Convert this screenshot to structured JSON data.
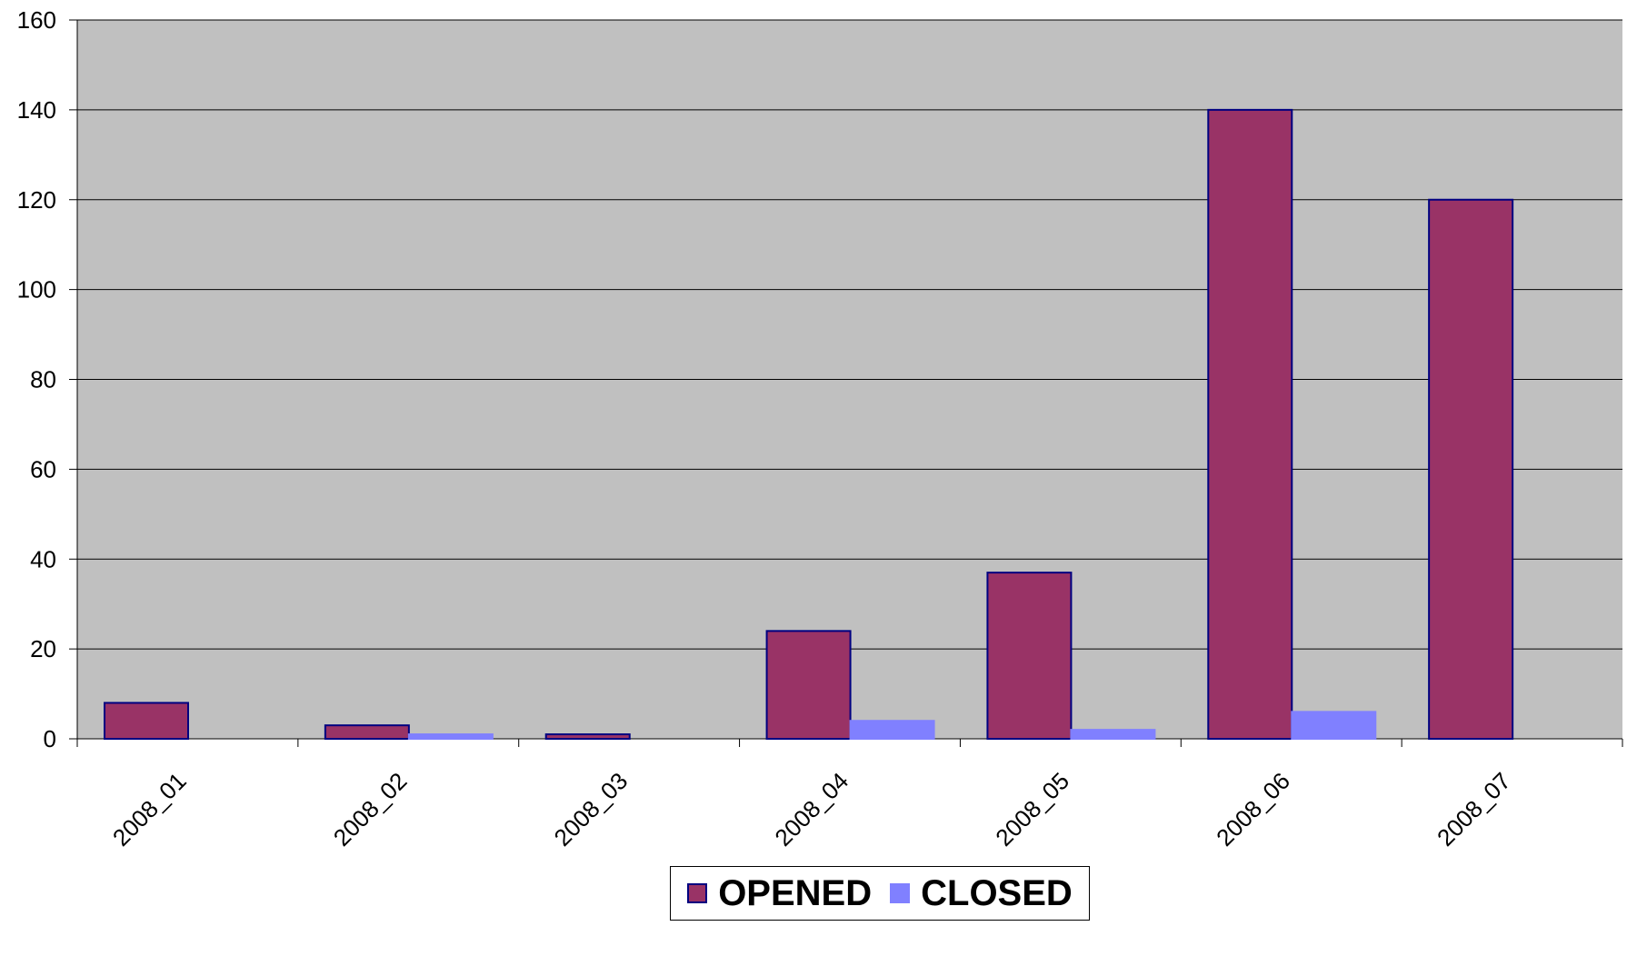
{
  "chart_data": {
    "type": "bar",
    "categories": [
      "2008_01",
      "2008_02",
      "2008_03",
      "2008_04",
      "2008_05",
      "2008_06",
      "2008_07"
    ],
    "series": [
      {
        "name": "OPENED",
        "values": [
          8,
          3,
          1,
          24,
          37,
          140,
          120
        ],
        "color": "#993366",
        "border": "#000080"
      },
      {
        "name": "CLOSED",
        "values": [
          0,
          1,
          0,
          4,
          2,
          6,
          0
        ],
        "color": "#8080ff",
        "border": "#8080ff"
      }
    ],
    "ylim": [
      0,
      160
    ],
    "yticks": [
      0,
      20,
      40,
      60,
      80,
      100,
      120,
      140,
      160
    ],
    "grid": true,
    "plot_background": "#c0c0c0",
    "legend_position": "bottom-center",
    "title": "",
    "xlabel": "",
    "ylabel": ""
  },
  "legend": {
    "opened_label": "OPENED",
    "closed_label": "CLOSED"
  }
}
